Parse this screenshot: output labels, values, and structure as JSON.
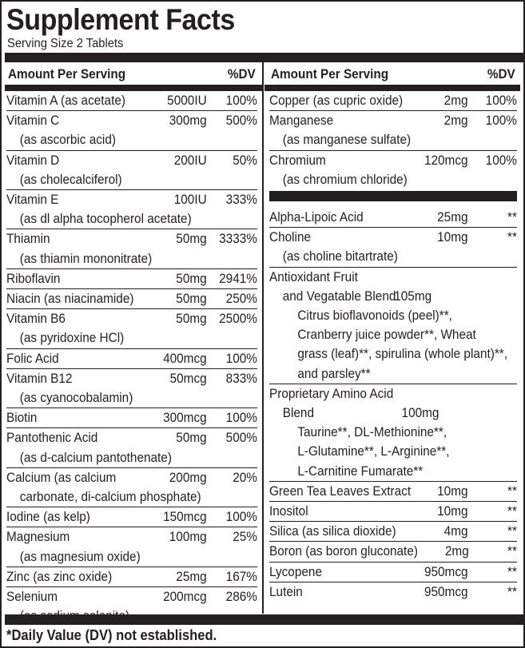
{
  "title": "Supplement Facts",
  "serving": "Serving Size 2 Tablets",
  "header": {
    "amount": "Amount Per Serving",
    "dv": "%DV"
  },
  "left": [
    {
      "name": "Vitamin A (as acetate)",
      "amount": "5000IU",
      "dv": "100%"
    },
    {
      "name": "Vitamin C",
      "sub": "(as ascorbic acid)",
      "amount": "300mg",
      "dv": "500%"
    },
    {
      "name": "Vitamin D",
      "sub": "(as cholecalciferol)",
      "amount": "200IU",
      "dv": "50%"
    },
    {
      "name": "Vitamin E",
      "sub": "(as dl alpha tocopherol acetate)",
      "amount": "100IU",
      "dv": "333%"
    },
    {
      "name": "Thiamin",
      "sub": "(as thiamin mononitrate)",
      "amount": "50mg",
      "dv": "3333%"
    },
    {
      "name": "Riboflavin",
      "amount": "50mg",
      "dv": "2941%"
    },
    {
      "name": "Niacin (as niacinamide)",
      "amount": "50mg",
      "dv": "250%"
    },
    {
      "name": "Vitamin B6",
      "sub": "(as pyridoxine HCl)",
      "amount": "50mg",
      "dv": "2500%"
    },
    {
      "name": "Folic Acid",
      "amount": "400mcg",
      "dv": "100%"
    },
    {
      "name": "Vitamin B12",
      "sub": "(as cyanocobalamin)",
      "amount": "50mcg",
      "dv": "833%"
    },
    {
      "name": "Biotin",
      "amount": "300mcg",
      "dv": "100%"
    },
    {
      "name": "Pantothenic Acid",
      "sub": "(as d-calcium pantothenate)",
      "amount": "50mg",
      "dv": "500%"
    },
    {
      "name": "Calcium (as calcium",
      "sub": "carbonate, di-calcium phosphate)",
      "amount": "200mg",
      "dv": "20%"
    },
    {
      "name": "Iodine (as kelp)",
      "amount": "150mcg",
      "dv": "100%"
    },
    {
      "name": "Magnesium",
      "sub": "(as magnesium oxide)",
      "amount": "100mg",
      "dv": "25%"
    },
    {
      "name": "Zinc (as zinc oxide)",
      "amount": "25mg",
      "dv": "167%"
    },
    {
      "name": "Selenium",
      "sub": "(as sodium selenite)",
      "amount": "200mcg",
      "dv": "286%"
    }
  ],
  "right_top": [
    {
      "name": "Copper (as cupric oxide)",
      "amount": "2mg",
      "dv": "100%"
    },
    {
      "name": "Manganese",
      "sub": "(as manganese sulfate)",
      "amount": "2mg",
      "dv": "100%"
    },
    {
      "name": "Chromium",
      "sub": "(as chromium chloride)",
      "amount": "120mcg",
      "dv": "100%"
    }
  ],
  "right_bottom": [
    {
      "name": "Alpha-Lipoic Acid",
      "amount": "25mg",
      "dv": "**"
    },
    {
      "name": "Choline",
      "sub": "(as choline bitartrate)",
      "amount": "10mg",
      "dv": "**"
    },
    {
      "name": "Antioxidant Fruit",
      "sub": "and Vegatable Blend",
      "amount": "105mg",
      "details": [
        "Citrus bioflavonoids (peel)**,",
        "Cranberry juice powder**, Wheat",
        "grass (leaf)**, spirulina (whole plant)**,",
        "and parsley**"
      ]
    },
    {
      "name": "Proprietary Amino Acid",
      "sub": "Blend",
      "amount": "100mg",
      "details": [
        "Taurine**, DL-Methionine**,",
        "L-Glutamine**,  L-Arginine**,",
        "L-Carnitine Fumarate**"
      ]
    },
    {
      "name": "Green Tea Leaves Extract",
      "amount": "10mg",
      "dv": "**"
    },
    {
      "name": "Inositol",
      "amount": "10mg",
      "dv": "**"
    },
    {
      "name": "Silica (as silica dioxide)",
      "amount": "4mg",
      "dv": "**"
    },
    {
      "name": "Boron (as boron gluconate)",
      "amount": "2mg",
      "dv": "**"
    },
    {
      "name": "Lycopene",
      "amount": "950mcg",
      "dv": "**"
    },
    {
      "name": "Lutein",
      "amount": "950mcg",
      "dv": "**"
    }
  ],
  "footnote": "*Daily Value (DV) not established."
}
